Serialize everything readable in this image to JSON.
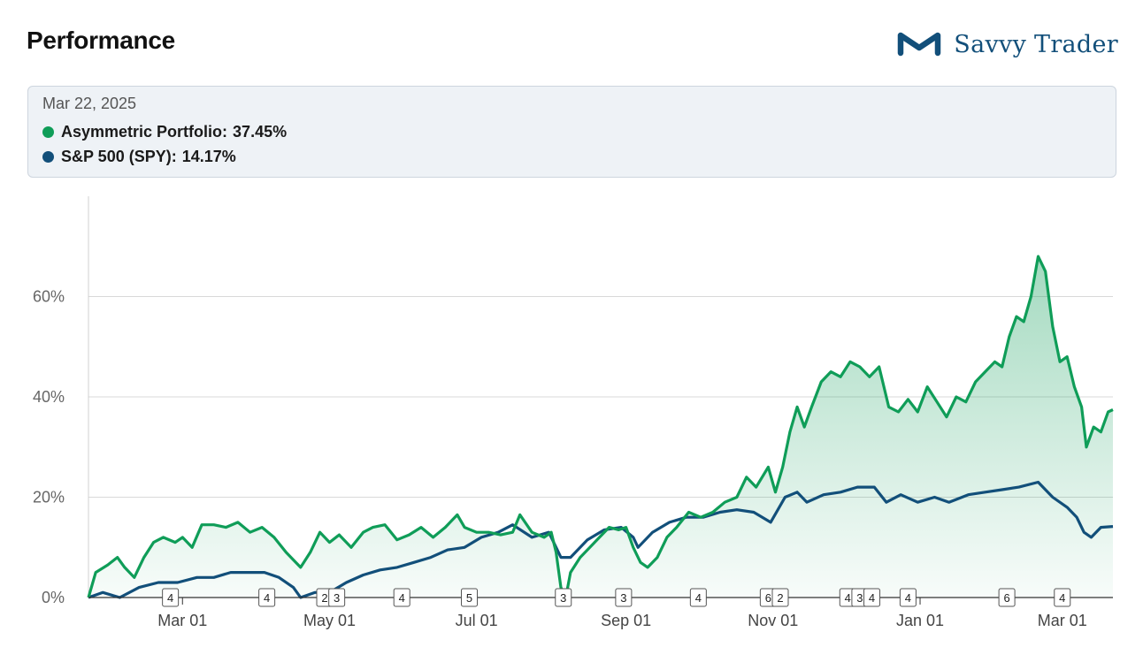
{
  "header": {
    "title": "Performance",
    "brand": "Savvy Trader",
    "brand_color": "#124f7a"
  },
  "tooltip": {
    "date": "Mar 22, 2025",
    "rows": [
      {
        "label": "Asymmetric Portfolio:",
        "value": "37.45%",
        "color": "#0f9d58"
      },
      {
        "label": "S&P 500 (SPY):",
        "value": "14.17%",
        "color": "#124f7a"
      }
    ]
  },
  "chart_data": {
    "type": "area",
    "x_range": [
      "2024-01-22",
      "2025-03-22"
    ],
    "ylim": [
      0,
      80
    ],
    "yticks": [
      0,
      20,
      40,
      60
    ],
    "ytick_labels": [
      "0%",
      "20%",
      "40%",
      "60%"
    ],
    "xticks": [
      {
        "date": "2024-03-01",
        "label": "Mar 01"
      },
      {
        "date": "2024-05-01",
        "label": "May 01"
      },
      {
        "date": "2024-07-01",
        "label": "Jul 01"
      },
      {
        "date": "2024-09-01",
        "label": "Sep 01"
      },
      {
        "date": "2024-11-01",
        "label": "Nov 01"
      },
      {
        "date": "2025-01-01",
        "label": "Jan 01"
      },
      {
        "date": "2025-03-01",
        "label": "Mar 01"
      }
    ],
    "grid": "horizontal",
    "series": [
      {
        "name": "Asymmetric Portfolio",
        "color": "#0f9d58",
        "fill": true,
        "points": [
          [
            "2024-01-22",
            0
          ],
          [
            "2024-01-25",
            5
          ],
          [
            "2024-01-30",
            6.5
          ],
          [
            "2024-02-03",
            8
          ],
          [
            "2024-02-06",
            6
          ],
          [
            "2024-02-10",
            4
          ],
          [
            "2024-02-14",
            8
          ],
          [
            "2024-02-18",
            11
          ],
          [
            "2024-02-22",
            12
          ],
          [
            "2024-02-27",
            11
          ],
          [
            "2024-03-01",
            12
          ],
          [
            "2024-03-05",
            10
          ],
          [
            "2024-03-09",
            14.5
          ],
          [
            "2024-03-14",
            14.5
          ],
          [
            "2024-03-19",
            14
          ],
          [
            "2024-03-24",
            15
          ],
          [
            "2024-03-29",
            13
          ],
          [
            "2024-04-03",
            14
          ],
          [
            "2024-04-08",
            12
          ],
          [
            "2024-04-13",
            9
          ],
          [
            "2024-04-19",
            6
          ],
          [
            "2024-04-23",
            9
          ],
          [
            "2024-04-27",
            13
          ],
          [
            "2024-05-01",
            11
          ],
          [
            "2024-05-05",
            12.5
          ],
          [
            "2024-05-10",
            10
          ],
          [
            "2024-05-15",
            13
          ],
          [
            "2024-05-19",
            14
          ],
          [
            "2024-05-24",
            14.5
          ],
          [
            "2024-05-29",
            11.5
          ],
          [
            "2024-06-03",
            12.5
          ],
          [
            "2024-06-08",
            14
          ],
          [
            "2024-06-13",
            12
          ],
          [
            "2024-06-18",
            14
          ],
          [
            "2024-06-23",
            16.5
          ],
          [
            "2024-06-26",
            14
          ],
          [
            "2024-07-01",
            13
          ],
          [
            "2024-07-06",
            13
          ],
          [
            "2024-07-11",
            12.5
          ],
          [
            "2024-07-16",
            13
          ],
          [
            "2024-07-19",
            16.5
          ],
          [
            "2024-07-24",
            13
          ],
          [
            "2024-07-29",
            12
          ],
          [
            "2024-08-01",
            13
          ],
          [
            "2024-08-03",
            9
          ],
          [
            "2024-08-05",
            2
          ],
          [
            "2024-08-07",
            0
          ],
          [
            "2024-08-09",
            5
          ],
          [
            "2024-08-13",
            8
          ],
          [
            "2024-08-17",
            10
          ],
          [
            "2024-08-21",
            12
          ],
          [
            "2024-08-25",
            14
          ],
          [
            "2024-08-29",
            13.5
          ],
          [
            "2024-09-01",
            14
          ],
          [
            "2024-09-04",
            10
          ],
          [
            "2024-09-07",
            7
          ],
          [
            "2024-09-10",
            6
          ],
          [
            "2024-09-14",
            8
          ],
          [
            "2024-09-18",
            12
          ],
          [
            "2024-09-22",
            14
          ],
          [
            "2024-09-27",
            17
          ],
          [
            "2024-10-02",
            16
          ],
          [
            "2024-10-07",
            17
          ],
          [
            "2024-10-12",
            19
          ],
          [
            "2024-10-17",
            20
          ],
          [
            "2024-10-21",
            24
          ],
          [
            "2024-10-25",
            22
          ],
          [
            "2024-10-30",
            26
          ],
          [
            "2024-11-02",
            21
          ],
          [
            "2024-11-05",
            26
          ],
          [
            "2024-11-08",
            33
          ],
          [
            "2024-11-11",
            38
          ],
          [
            "2024-11-14",
            34
          ],
          [
            "2024-11-17",
            38
          ],
          [
            "2024-11-21",
            43
          ],
          [
            "2024-11-25",
            45
          ],
          [
            "2024-11-29",
            44
          ],
          [
            "2024-12-03",
            47
          ],
          [
            "2024-12-07",
            46
          ],
          [
            "2024-12-11",
            44
          ],
          [
            "2024-12-15",
            46
          ],
          [
            "2024-12-19",
            38
          ],
          [
            "2024-12-23",
            37
          ],
          [
            "2024-12-27",
            39.5
          ],
          [
            "2024-12-31",
            37
          ],
          [
            "2025-01-04",
            42
          ],
          [
            "2025-01-08",
            39
          ],
          [
            "2025-01-12",
            36
          ],
          [
            "2025-01-16",
            40
          ],
          [
            "2025-01-20",
            39
          ],
          [
            "2025-01-24",
            43
          ],
          [
            "2025-01-28",
            45
          ],
          [
            "2025-02-01",
            47
          ],
          [
            "2025-02-04",
            46
          ],
          [
            "2025-02-07",
            52
          ],
          [
            "2025-02-10",
            56
          ],
          [
            "2025-02-13",
            55
          ],
          [
            "2025-02-16",
            60
          ],
          [
            "2025-02-19",
            68
          ],
          [
            "2025-02-22",
            65
          ],
          [
            "2025-02-25",
            54
          ],
          [
            "2025-02-28",
            47
          ],
          [
            "2025-03-03",
            48
          ],
          [
            "2025-03-06",
            42
          ],
          [
            "2025-03-09",
            38
          ],
          [
            "2025-03-11",
            30
          ],
          [
            "2025-03-14",
            34
          ],
          [
            "2025-03-17",
            33
          ],
          [
            "2025-03-20",
            37
          ],
          [
            "2025-03-22",
            37.45
          ]
        ]
      },
      {
        "name": "S&P 500 (SPY)",
        "color": "#124f7a",
        "fill": false,
        "points": [
          [
            "2024-01-22",
            0
          ],
          [
            "2024-01-28",
            1
          ],
          [
            "2024-02-04",
            0
          ],
          [
            "2024-02-12",
            2
          ],
          [
            "2024-02-20",
            3
          ],
          [
            "2024-02-28",
            3
          ],
          [
            "2024-03-07",
            4
          ],
          [
            "2024-03-14",
            4
          ],
          [
            "2024-03-21",
            5
          ],
          [
            "2024-03-28",
            5
          ],
          [
            "2024-04-04",
            5
          ],
          [
            "2024-04-10",
            4
          ],
          [
            "2024-04-16",
            2
          ],
          [
            "2024-04-19",
            0
          ],
          [
            "2024-04-25",
            1
          ],
          [
            "2024-05-01",
            1
          ],
          [
            "2024-05-08",
            3
          ],
          [
            "2024-05-15",
            4.5
          ],
          [
            "2024-05-22",
            5.5
          ],
          [
            "2024-05-29",
            6
          ],
          [
            "2024-06-05",
            7
          ],
          [
            "2024-06-12",
            8
          ],
          [
            "2024-06-19",
            9.5
          ],
          [
            "2024-06-26",
            10
          ],
          [
            "2024-07-03",
            12
          ],
          [
            "2024-07-10",
            13
          ],
          [
            "2024-07-16",
            14.5
          ],
          [
            "2024-07-24",
            12
          ],
          [
            "2024-07-31",
            13
          ],
          [
            "2024-08-05",
            8
          ],
          [
            "2024-08-09",
            8
          ],
          [
            "2024-08-16",
            11.5
          ],
          [
            "2024-08-23",
            13.5
          ],
          [
            "2024-08-30",
            14
          ],
          [
            "2024-09-04",
            12
          ],
          [
            "2024-09-06",
            10
          ],
          [
            "2024-09-12",
            13
          ],
          [
            "2024-09-19",
            15
          ],
          [
            "2024-09-26",
            16
          ],
          [
            "2024-10-03",
            16
          ],
          [
            "2024-10-10",
            17
          ],
          [
            "2024-10-17",
            17.5
          ],
          [
            "2024-10-24",
            17
          ],
          [
            "2024-10-31",
            15
          ],
          [
            "2024-11-06",
            20
          ],
          [
            "2024-11-11",
            21
          ],
          [
            "2024-11-15",
            19
          ],
          [
            "2024-11-22",
            20.5
          ],
          [
            "2024-11-29",
            21
          ],
          [
            "2024-12-06",
            22
          ],
          [
            "2024-12-13",
            22
          ],
          [
            "2024-12-18",
            19
          ],
          [
            "2024-12-24",
            20.5
          ],
          [
            "2024-12-31",
            19
          ],
          [
            "2025-01-07",
            20
          ],
          [
            "2025-01-13",
            19
          ],
          [
            "2025-01-21",
            20.5
          ],
          [
            "2025-01-28",
            21
          ],
          [
            "2025-02-04",
            21.5
          ],
          [
            "2025-02-11",
            22
          ],
          [
            "2025-02-19",
            23
          ],
          [
            "2025-02-25",
            20
          ],
          [
            "2025-03-03",
            18
          ],
          [
            "2025-03-07",
            16
          ],
          [
            "2025-03-10",
            13
          ],
          [
            "2025-03-13",
            12
          ],
          [
            "2025-03-17",
            14
          ],
          [
            "2025-03-22",
            14.17
          ]
        ]
      }
    ],
    "trade_markers": [
      {
        "date": "2024-02-25",
        "label": "4"
      },
      {
        "date": "2024-04-05",
        "label": "4"
      },
      {
        "date": "2024-04-29",
        "label": "2"
      },
      {
        "date": "2024-05-04",
        "label": "3"
      },
      {
        "date": "2024-05-31",
        "label": "4"
      },
      {
        "date": "2024-06-28",
        "label": "5"
      },
      {
        "date": "2024-08-06",
        "label": "3"
      },
      {
        "date": "2024-08-31",
        "label": "3"
      },
      {
        "date": "2024-10-01",
        "label": "4"
      },
      {
        "date": "2024-10-30",
        "label": "6"
      },
      {
        "date": "2024-11-04",
        "label": "2"
      },
      {
        "date": "2024-12-02",
        "label": "4"
      },
      {
        "date": "2024-12-07",
        "label": "3"
      },
      {
        "date": "2024-12-12",
        "label": "4"
      },
      {
        "date": "2024-12-27",
        "label": "4"
      },
      {
        "date": "2025-02-06",
        "label": "6"
      },
      {
        "date": "2025-03-01",
        "label": "4"
      }
    ]
  }
}
